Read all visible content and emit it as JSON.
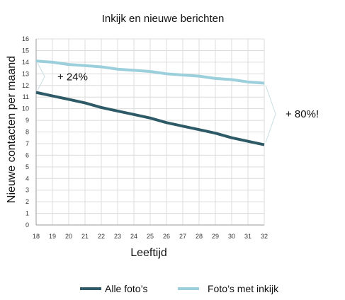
{
  "chart_data": {
    "type": "line",
    "title": "Inkijk en nieuwe berichten",
    "xlabel": "Leeftijd",
    "ylabel": "Nieuwe contacten per maand",
    "x": [
      18,
      19,
      20,
      21,
      22,
      23,
      24,
      25,
      26,
      27,
      28,
      29,
      30,
      31,
      32
    ],
    "xlim": [
      18,
      32
    ],
    "ylim": [
      0,
      16
    ],
    "yticks": [
      0,
      1,
      2,
      3,
      4,
      5,
      6,
      7,
      8,
      9,
      10,
      11,
      12,
      13,
      14,
      15,
      16
    ],
    "grid": true,
    "legend_position": "bottom",
    "series": [
      {
        "name": "Alle foto’s",
        "color": "#2d5a66",
        "values": [
          11.4,
          11.1,
          10.8,
          10.5,
          10.1,
          9.8,
          9.5,
          9.2,
          8.8,
          8.5,
          8.2,
          7.9,
          7.5,
          7.2,
          6.9
        ]
      },
      {
        "name": "Foto’s met inkijk",
        "color": "#9ccfdc",
        "values": [
          14.1,
          14.0,
          13.8,
          13.7,
          13.6,
          13.4,
          13.3,
          13.2,
          13.0,
          12.9,
          12.8,
          12.6,
          12.5,
          12.3,
          12.2
        ]
      }
    ],
    "annotations": [
      {
        "text": "+ 24%",
        "at_x": 18
      },
      {
        "text": "+ 80%!",
        "at_x": 32
      }
    ]
  }
}
